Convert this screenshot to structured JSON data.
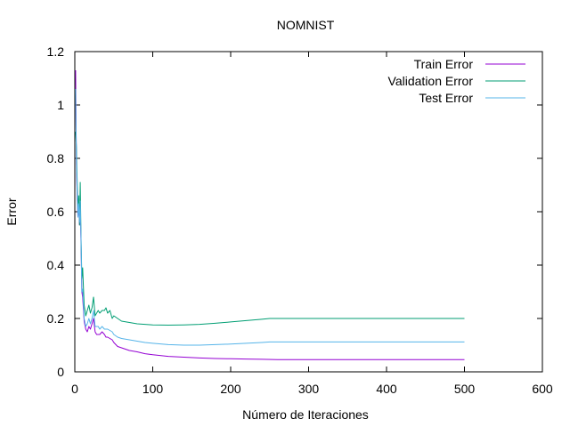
{
  "chart_data": {
    "type": "line",
    "title": "NOMNIST",
    "xlabel": "Número de Iteraciones",
    "ylabel": "Error",
    "xlim": [
      0,
      600
    ],
    "ylim": [
      0,
      1.2
    ],
    "xticks": [
      0,
      100,
      200,
      300,
      400,
      500,
      600
    ],
    "yticks": [
      0,
      0.2,
      0.4,
      0.6,
      0.8,
      1,
      1.2
    ],
    "xtick_labels": [
      "0",
      "100",
      "200",
      "300",
      "400",
      "500",
      "600"
    ],
    "ytick_labels": [
      "0",
      "0.2",
      "0.4",
      "0.6",
      "0.8",
      "1",
      "1.2"
    ],
    "grid": false,
    "legend_position": "top-right",
    "series": [
      {
        "name": "Train Error",
        "color": "#9400d3",
        "x": [
          1,
          2,
          3,
          4,
          5,
          6,
          7,
          8,
          9,
          10,
          12,
          14,
          16,
          18,
          20,
          22,
          24,
          26,
          28,
          30,
          32,
          35,
          38,
          40,
          42,
          45,
          48,
          50,
          55,
          60,
          70,
          80,
          90,
          100,
          120,
          140,
          160,
          180,
          200,
          220,
          240,
          260,
          300,
          350,
          400,
          450,
          500
        ],
        "y": [
          1.13,
          0.78,
          0.66,
          0.58,
          0.62,
          0.55,
          0.62,
          0.48,
          0.3,
          0.28,
          0.19,
          0.16,
          0.15,
          0.17,
          0.16,
          0.18,
          0.2,
          0.15,
          0.14,
          0.14,
          0.14,
          0.15,
          0.14,
          0.13,
          0.13,
          0.125,
          0.12,
          0.11,
          0.095,
          0.09,
          0.08,
          0.075,
          0.068,
          0.064,
          0.058,
          0.055,
          0.052,
          0.05,
          0.049,
          0.048,
          0.047,
          0.046,
          0.046,
          0.046,
          0.046,
          0.046,
          0.046
        ]
      },
      {
        "name": "Validation Error",
        "color": "#009e73",
        "x": [
          1,
          2,
          3,
          4,
          5,
          6,
          7,
          8,
          9,
          10,
          12,
          14,
          16,
          18,
          20,
          22,
          24,
          26,
          28,
          30,
          32,
          35,
          38,
          40,
          42,
          45,
          48,
          50,
          55,
          60,
          70,
          80,
          90,
          100,
          120,
          140,
          160,
          180,
          200,
          220,
          240,
          250,
          300,
          350,
          400,
          450,
          500
        ],
        "y": [
          0.9,
          0.84,
          0.72,
          0.6,
          0.66,
          0.55,
          0.71,
          0.5,
          0.35,
          0.39,
          0.25,
          0.21,
          0.23,
          0.25,
          0.22,
          0.24,
          0.28,
          0.21,
          0.22,
          0.23,
          0.22,
          0.23,
          0.23,
          0.24,
          0.22,
          0.23,
          0.2,
          0.21,
          0.2,
          0.19,
          0.185,
          0.18,
          0.178,
          0.176,
          0.175,
          0.176,
          0.178,
          0.182,
          0.187,
          0.192,
          0.197,
          0.2,
          0.2,
          0.2,
          0.2,
          0.2,
          0.2
        ]
      },
      {
        "name": "Test Error",
        "color": "#56b4e9",
        "x": [
          1,
          2,
          3,
          4,
          5,
          6,
          7,
          8,
          9,
          10,
          12,
          14,
          16,
          18,
          20,
          22,
          24,
          26,
          28,
          30,
          32,
          35,
          38,
          40,
          42,
          45,
          48,
          50,
          55,
          60,
          70,
          80,
          90,
          100,
          120,
          140,
          160,
          180,
          200,
          220,
          240,
          250,
          300,
          350,
          400,
          450,
          500
        ],
        "y": [
          1.06,
          0.8,
          0.68,
          0.58,
          0.63,
          0.56,
          0.64,
          0.5,
          0.3,
          0.31,
          0.2,
          0.17,
          0.18,
          0.2,
          0.18,
          0.2,
          0.23,
          0.17,
          0.17,
          0.17,
          0.16,
          0.17,
          0.16,
          0.16,
          0.16,
          0.155,
          0.15,
          0.14,
          0.13,
          0.125,
          0.12,
          0.115,
          0.11,
          0.107,
          0.102,
          0.1,
          0.1,
          0.102,
          0.104,
          0.107,
          0.11,
          0.112,
          0.112,
          0.112,
          0.112,
          0.112,
          0.112
        ]
      }
    ]
  }
}
